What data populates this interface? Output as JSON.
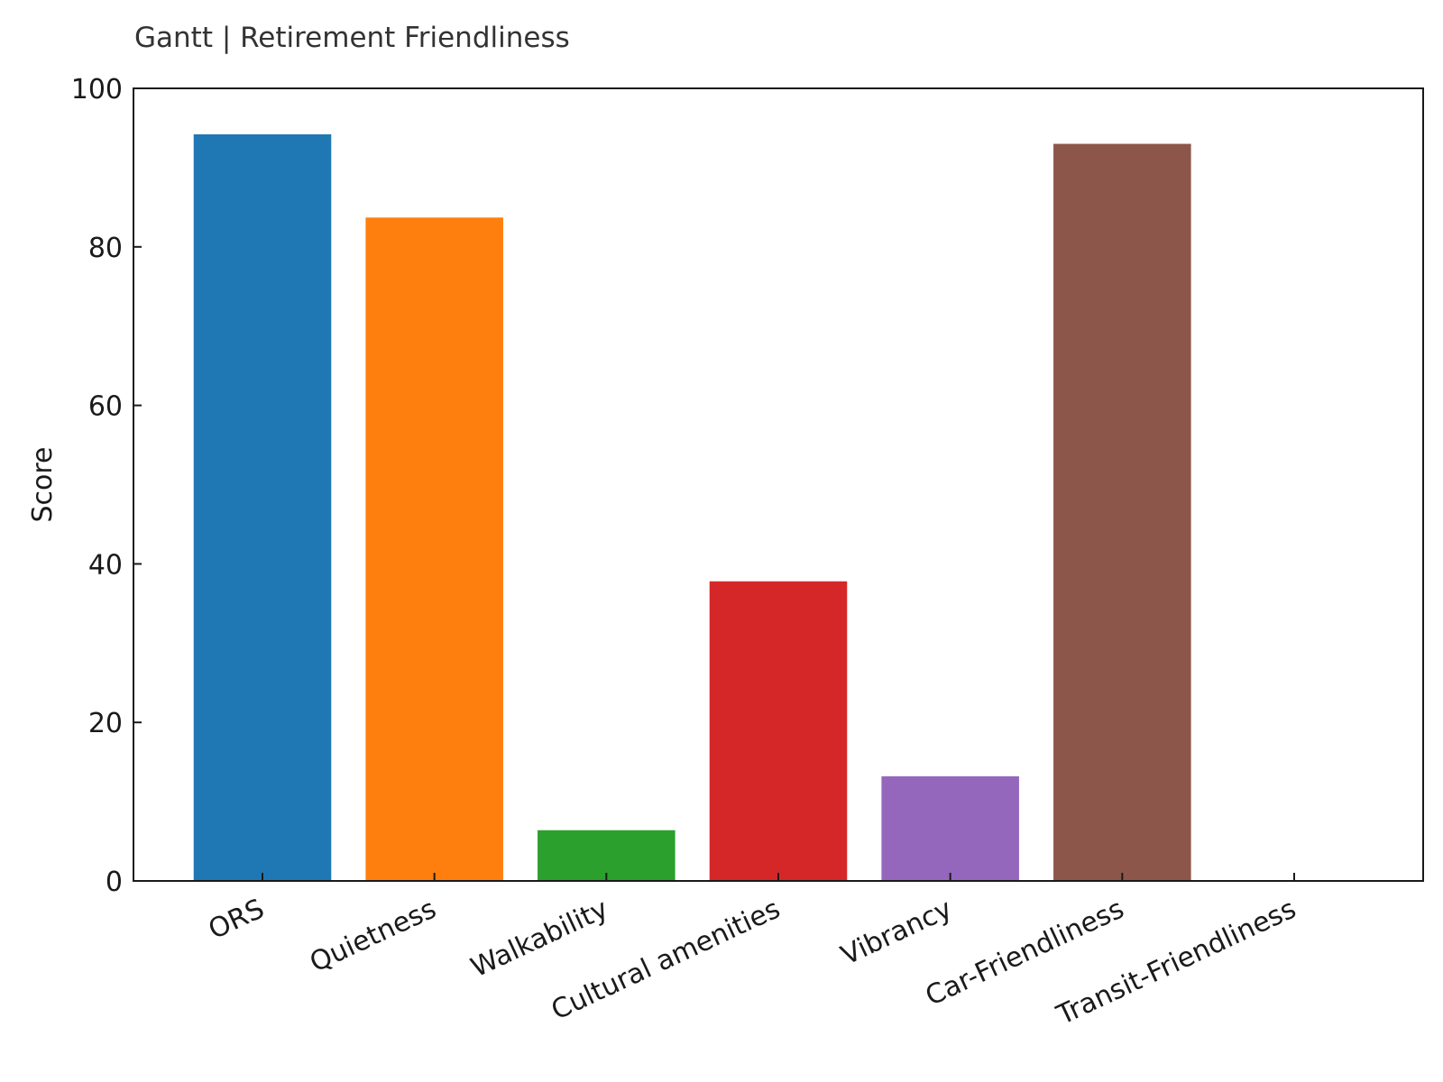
{
  "chart_data": {
    "type": "bar",
    "title": "Gantt | Retirement Friendliness",
    "xlabel": "",
    "ylabel": "Score",
    "categories": [
      "ORS",
      "Quietness",
      "Walkability",
      "Cultural amenities",
      "Vibrancy",
      "Car-Friendliness",
      "Transit-Friendliness"
    ],
    "values": [
      94.2,
      83.7,
      6.4,
      37.8,
      13.2,
      93.0,
      0
    ],
    "colors": [
      "#1f77b4",
      "#ff7f0e",
      "#2ca02c",
      "#d62728",
      "#9467bd",
      "#8c564b",
      "#e377c2"
    ],
    "ylim": [
      0,
      100
    ],
    "yticks": [
      0,
      20,
      40,
      60,
      80,
      100
    ],
    "grid": false,
    "legend": "none"
  }
}
